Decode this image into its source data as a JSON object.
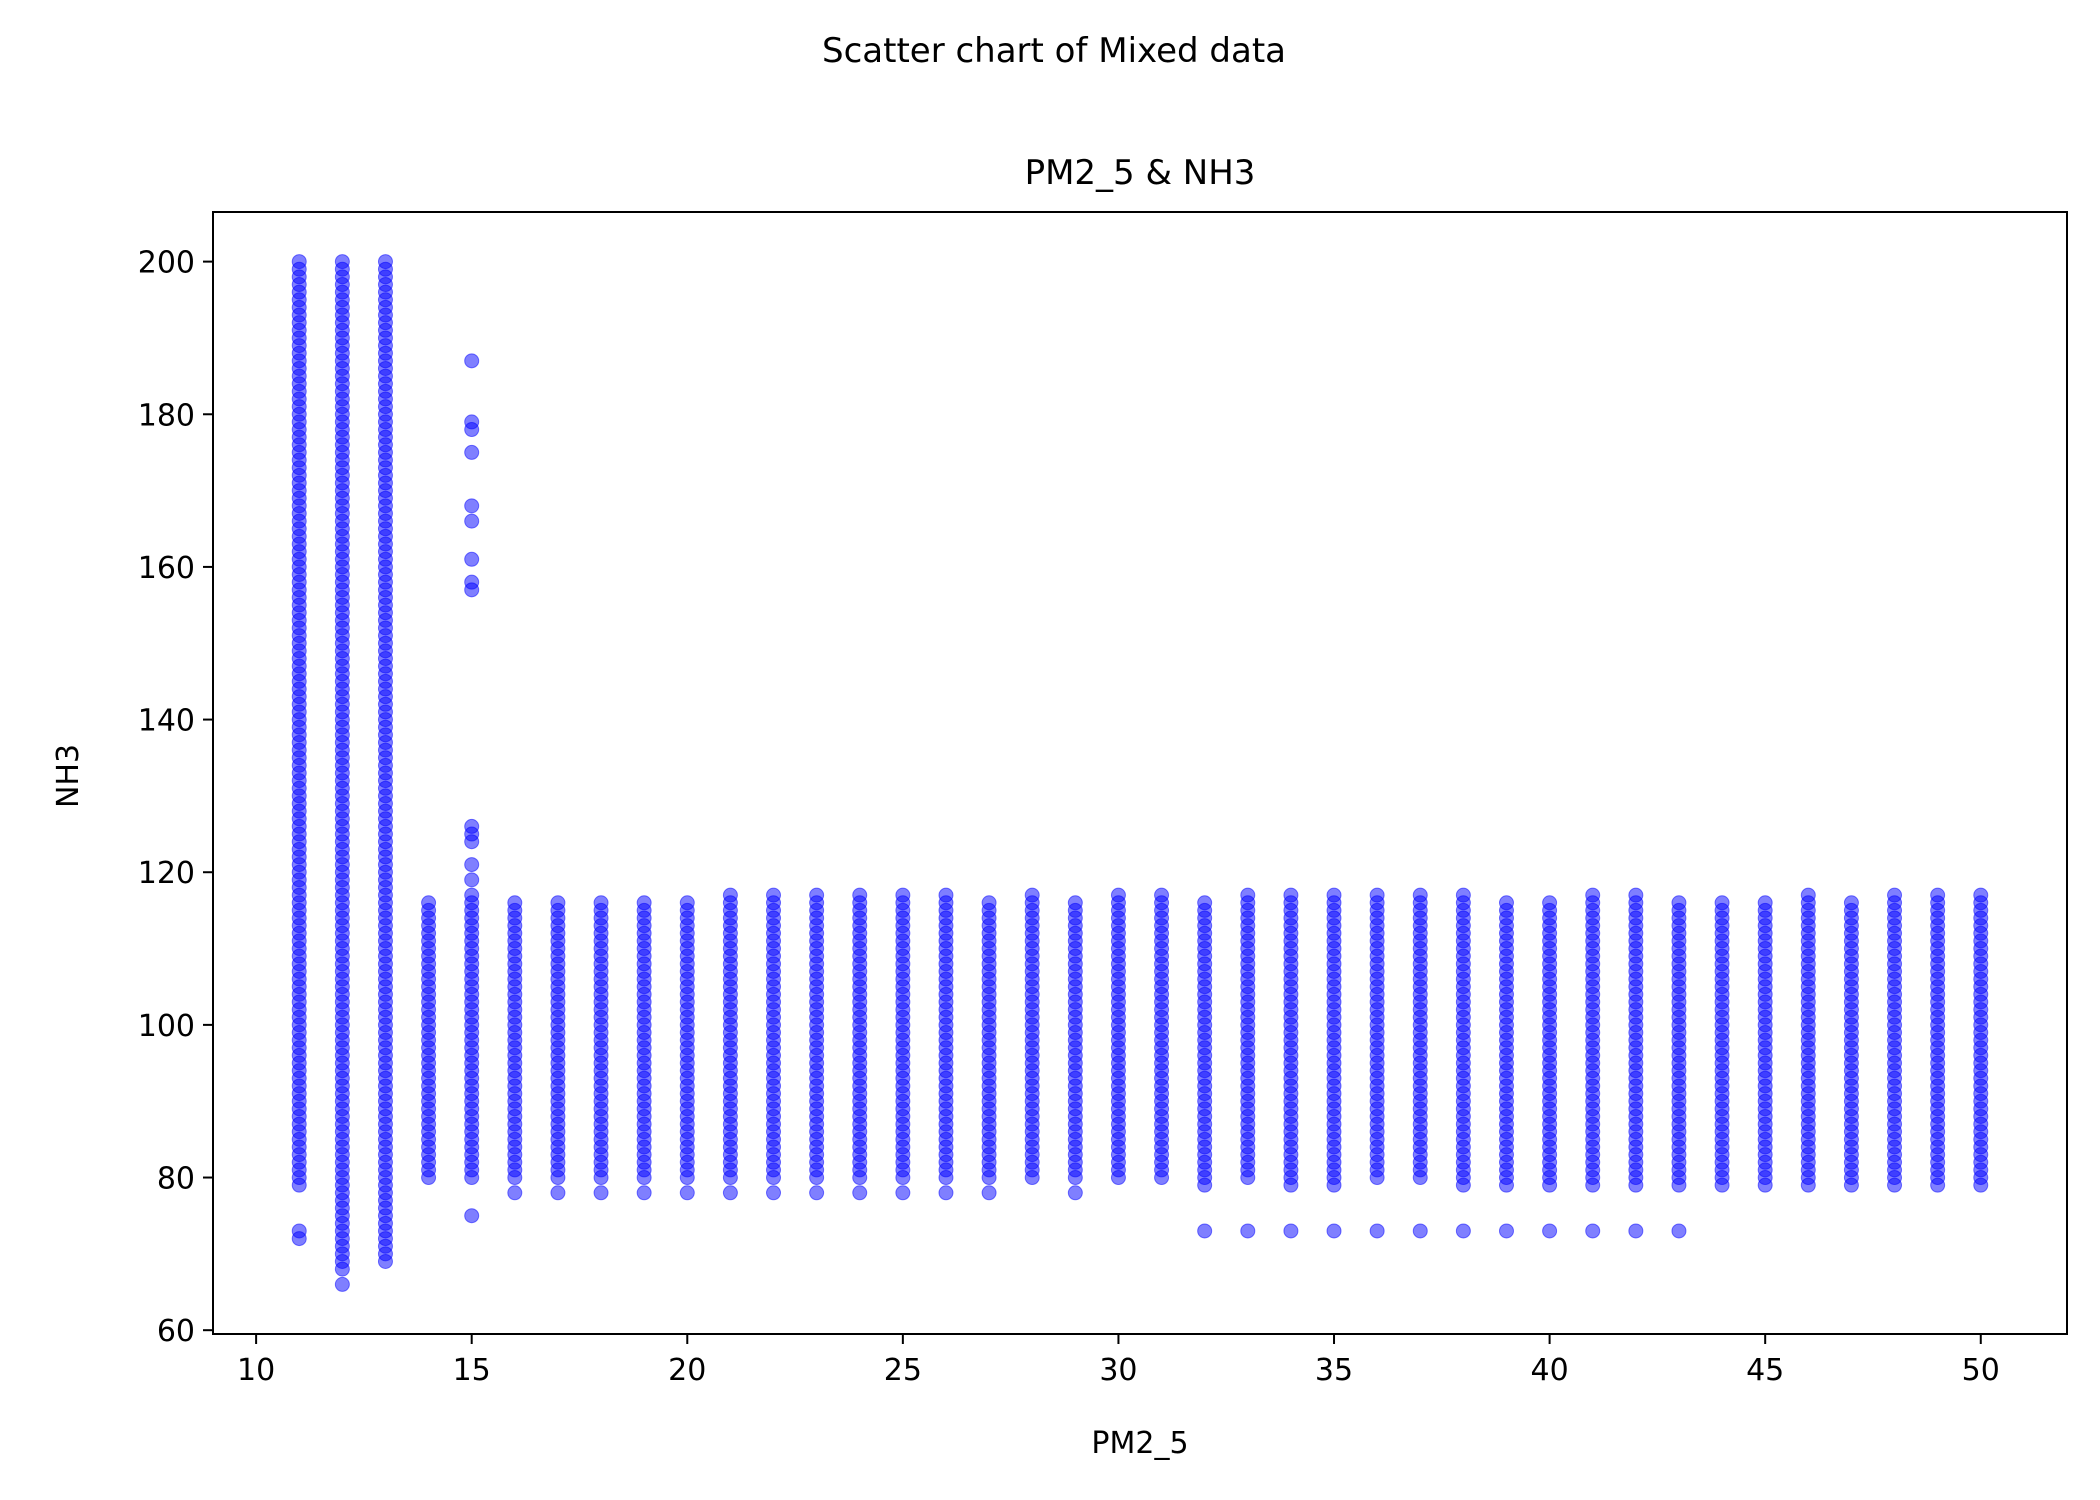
{
  "chart_data": {
    "type": "scatter",
    "suptitle": "Scatter chart of Mixed data",
    "title": "PM2_5 & NH3",
    "xlabel": "PM2_5",
    "ylabel": "NH3",
    "xlim": [
      9,
      52
    ],
    "ylim": [
      59.5,
      206.5
    ],
    "xticks": [
      10,
      15,
      20,
      25,
      30,
      35,
      40,
      45,
      50
    ],
    "yticks": [
      60,
      80,
      100,
      120,
      140,
      160,
      180,
      200
    ],
    "grid": false,
    "marker_color": "#0000ff",
    "series": [
      {
        "columns": [
          {
            "x": 11,
            "y_min": 79,
            "y_max": 200
          },
          {
            "x": 12,
            "y_min": 69,
            "y_max": 200
          },
          {
            "x": 13,
            "y_min": 69,
            "y_max": 200
          },
          {
            "x": 14,
            "y_min": 80,
            "y_max": 116
          },
          {
            "x": 15,
            "y_min": 80,
            "y_max": 116
          },
          {
            "x": 16,
            "y_min": 80,
            "y_max": 116
          },
          {
            "x": 17,
            "y_min": 80,
            "y_max": 116
          },
          {
            "x": 18,
            "y_min": 80,
            "y_max": 116
          },
          {
            "x": 19,
            "y_min": 80,
            "y_max": 116
          },
          {
            "x": 20,
            "y_min": 80,
            "y_max": 116
          },
          {
            "x": 21,
            "y_min": 80,
            "y_max": 117
          },
          {
            "x": 22,
            "y_min": 80,
            "y_max": 117
          },
          {
            "x": 23,
            "y_min": 80,
            "y_max": 117
          },
          {
            "x": 24,
            "y_min": 80,
            "y_max": 117
          },
          {
            "x": 25,
            "y_min": 80,
            "y_max": 117
          },
          {
            "x": 26,
            "y_min": 80,
            "y_max": 117
          },
          {
            "x": 27,
            "y_min": 80,
            "y_max": 116
          },
          {
            "x": 28,
            "y_min": 80,
            "y_max": 117
          },
          {
            "x": 29,
            "y_min": 80,
            "y_max": 116
          },
          {
            "x": 30,
            "y_min": 80,
            "y_max": 117
          },
          {
            "x": 31,
            "y_min": 80,
            "y_max": 117
          },
          {
            "x": 32,
            "y_min": 79,
            "y_max": 116
          },
          {
            "x": 33,
            "y_min": 80,
            "y_max": 117
          },
          {
            "x": 34,
            "y_min": 79,
            "y_max": 117
          },
          {
            "x": 35,
            "y_min": 79,
            "y_max": 117
          },
          {
            "x": 36,
            "y_min": 80,
            "y_max": 117
          },
          {
            "x": 37,
            "y_min": 80,
            "y_max": 117
          },
          {
            "x": 38,
            "y_min": 79,
            "y_max": 117
          },
          {
            "x": 39,
            "y_min": 79,
            "y_max": 116
          },
          {
            "x": 40,
            "y_min": 79,
            "y_max": 116
          },
          {
            "x": 41,
            "y_min": 79,
            "y_max": 117
          },
          {
            "x": 42,
            "y_min": 79,
            "y_max": 117
          },
          {
            "x": 43,
            "y_min": 79,
            "y_max": 116
          },
          {
            "x": 44,
            "y_min": 79,
            "y_max": 116
          },
          {
            "x": 45,
            "y_min": 79,
            "y_max": 116
          },
          {
            "x": 46,
            "y_min": 79,
            "y_max": 117
          },
          {
            "x": 47,
            "y_min": 79,
            "y_max": 116
          },
          {
            "x": 48,
            "y_min": 79,
            "y_max": 117
          },
          {
            "x": 49,
            "y_min": 79,
            "y_max": 117
          },
          {
            "x": 50,
            "y_min": 79,
            "y_max": 117
          }
        ],
        "points": [
          {
            "x": 11,
            "y": 73
          },
          {
            "x": 11,
            "y": 72
          },
          {
            "x": 12,
            "y": 68
          },
          {
            "x": 12,
            "y": 66
          },
          {
            "x": 15,
            "y": 187
          },
          {
            "x": 15,
            "y": 179
          },
          {
            "x": 15,
            "y": 178
          },
          {
            "x": 15,
            "y": 175
          },
          {
            "x": 15,
            "y": 168
          },
          {
            "x": 15,
            "y": 166
          },
          {
            "x": 15,
            "y": 161
          },
          {
            "x": 15,
            "y": 158
          },
          {
            "x": 15,
            "y": 157
          },
          {
            "x": 15,
            "y": 126
          },
          {
            "x": 15,
            "y": 125
          },
          {
            "x": 15,
            "y": 124
          },
          {
            "x": 15,
            "y": 121
          },
          {
            "x": 15,
            "y": 119
          },
          {
            "x": 15,
            "y": 117
          },
          {
            "x": 15,
            "y": 75
          },
          {
            "x": 16,
            "y": 78
          },
          {
            "x": 17,
            "y": 78
          },
          {
            "x": 18,
            "y": 78
          },
          {
            "x": 19,
            "y": 78
          },
          {
            "x": 20,
            "y": 78
          },
          {
            "x": 21,
            "y": 78
          },
          {
            "x": 22,
            "y": 78
          },
          {
            "x": 23,
            "y": 78
          },
          {
            "x": 24,
            "y": 78
          },
          {
            "x": 25,
            "y": 78
          },
          {
            "x": 26,
            "y": 78
          },
          {
            "x": 27,
            "y": 78
          },
          {
            "x": 29,
            "y": 78
          },
          {
            "x": 32,
            "y": 73
          },
          {
            "x": 33,
            "y": 73
          },
          {
            "x": 34,
            "y": 73
          },
          {
            "x": 35,
            "y": 73
          },
          {
            "x": 36,
            "y": 73
          },
          {
            "x": 37,
            "y": 73
          },
          {
            "x": 38,
            "y": 73
          },
          {
            "x": 39,
            "y": 73
          },
          {
            "x": 40,
            "y": 73
          },
          {
            "x": 41,
            "y": 73
          },
          {
            "x": 42,
            "y": 73
          },
          {
            "x": 43,
            "y": 73
          }
        ]
      }
    ]
  }
}
